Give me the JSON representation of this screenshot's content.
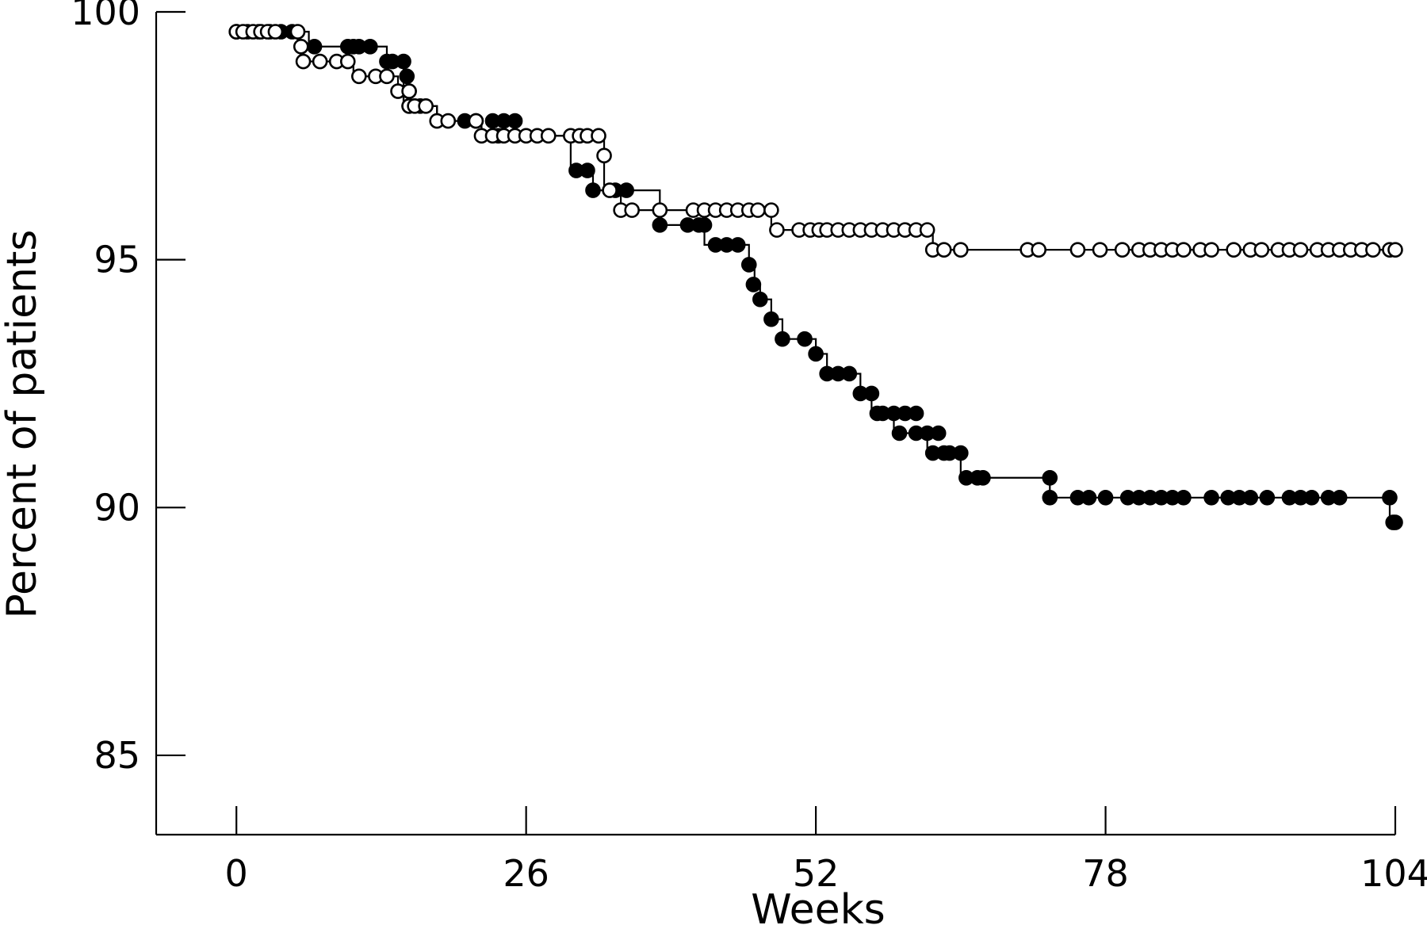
{
  "chart_data": {
    "type": "line",
    "title": "",
    "xlabel": "Weeks",
    "ylabel": "Percent of patients",
    "xlim": [
      -7.2,
      104
    ],
    "ylim": [
      83.4,
      100
    ],
    "xticks": [
      0,
      26,
      52,
      78,
      104
    ],
    "yticks": [
      85,
      90,
      95,
      100
    ],
    "grid": false,
    "legend": "none",
    "series": [
      {
        "marker": "filled-circle",
        "steps": [
          [
            0,
            99.6
          ],
          [
            5,
            99.6
          ],
          [
            6.5,
            99.3
          ],
          [
            10,
            99.3
          ],
          [
            13.5,
            99.0
          ],
          [
            15,
            98.7
          ],
          [
            15,
            98.1
          ],
          [
            17,
            98.1
          ],
          [
            18,
            97.8
          ],
          [
            21,
            97.8
          ],
          [
            22,
            97.5
          ],
          [
            30,
            97.5
          ],
          [
            30,
            96.8
          ],
          [
            32,
            96.4
          ],
          [
            34,
            96.4
          ],
          [
            38,
            95.7
          ],
          [
            42,
            95.3
          ],
          [
            46,
            94.9
          ],
          [
            46.5,
            94.5
          ],
          [
            47,
            94.2
          ],
          [
            48,
            93.8
          ],
          [
            49,
            93.4
          ],
          [
            52,
            93.1
          ],
          [
            53,
            92.7
          ],
          [
            56,
            92.3
          ],
          [
            57,
            91.9
          ],
          [
            59,
            91.5
          ],
          [
            62,
            91.1
          ],
          [
            65,
            90.6
          ],
          [
            73,
            90.2
          ],
          [
            103.5,
            90.2
          ],
          [
            103.5,
            89.7
          ],
          [
            104,
            89.7
          ]
        ],
        "points": [
          [
            0,
            99.6
          ],
          [
            1,
            99.6
          ],
          [
            2,
            99.6
          ],
          [
            3,
            99.6
          ],
          [
            4,
            99.6
          ],
          [
            5,
            99.6
          ],
          [
            7,
            99.3
          ],
          [
            10,
            99.3
          ],
          [
            10.5,
            99.3
          ],
          [
            11,
            99.3
          ],
          [
            12,
            99.3
          ],
          [
            13.5,
            99.0
          ],
          [
            14,
            99.0
          ],
          [
            15,
            99.0
          ],
          [
            15.3,
            98.7
          ],
          [
            15.5,
            98.4
          ],
          [
            15.5,
            98.1
          ],
          [
            16.5,
            98.1
          ],
          [
            20.5,
            97.8
          ],
          [
            21.5,
            97.8
          ],
          [
            23,
            97.8
          ],
          [
            23.5,
            97.5
          ],
          [
            24,
            97.8
          ],
          [
            25,
            97.8
          ],
          [
            30.5,
            96.8
          ],
          [
            31.5,
            96.8
          ],
          [
            32,
            96.4
          ],
          [
            34,
            96.4
          ],
          [
            35,
            96.4
          ],
          [
            38,
            95.7
          ],
          [
            40.5,
            95.7
          ],
          [
            41.5,
            95.7
          ],
          [
            42,
            95.7
          ],
          [
            43,
            95.3
          ],
          [
            44,
            95.3
          ],
          [
            45,
            95.3
          ],
          [
            46,
            94.9
          ],
          [
            46.4,
            94.5
          ],
          [
            47,
            94.2
          ],
          [
            48,
            93.8
          ],
          [
            49,
            93.4
          ],
          [
            51,
            93.4
          ],
          [
            52,
            93.1
          ],
          [
            53,
            92.7
          ],
          [
            54,
            92.7
          ],
          [
            55,
            92.7
          ],
          [
            56,
            92.3
          ],
          [
            57,
            92.3
          ],
          [
            57.5,
            91.9
          ],
          [
            58,
            91.9
          ],
          [
            59,
            91.9
          ],
          [
            60,
            91.9
          ],
          [
            61,
            91.9
          ],
          [
            59.5,
            91.5
          ],
          [
            61,
            91.5
          ],
          [
            62,
            91.5
          ],
          [
            63,
            91.5
          ],
          [
            62.5,
            91.1
          ],
          [
            63.5,
            91.1
          ],
          [
            64,
            91.1
          ],
          [
            65,
            91.1
          ],
          [
            65.5,
            90.6
          ],
          [
            66.5,
            90.6
          ],
          [
            67,
            90.6
          ],
          [
            73,
            90.6
          ],
          [
            73,
            90.2
          ],
          [
            75.5,
            90.2
          ],
          [
            76.5,
            90.2
          ],
          [
            78,
            90.2
          ],
          [
            80,
            90.2
          ],
          [
            81,
            90.2
          ],
          [
            82,
            90.2
          ],
          [
            83,
            90.2
          ],
          [
            84,
            90.2
          ],
          [
            85,
            90.2
          ],
          [
            87.5,
            90.2
          ],
          [
            89,
            90.2
          ],
          [
            90,
            90.2
          ],
          [
            91,
            90.2
          ],
          [
            92.5,
            90.2
          ],
          [
            94.5,
            90.2
          ],
          [
            95.5,
            90.2
          ],
          [
            96.5,
            90.2
          ],
          [
            98,
            90.2
          ],
          [
            99,
            90.2
          ],
          [
            103.5,
            90.2
          ],
          [
            104,
            89.7
          ],
          [
            103.8,
            89.7
          ]
        ]
      },
      {
        "marker": "open-circle",
        "steps": [
          [
            0,
            99.6
          ],
          [
            5.5,
            99.6
          ],
          [
            5.5,
            99.3
          ],
          [
            6,
            99.0
          ],
          [
            10,
            99.0
          ],
          [
            10.5,
            98.7
          ],
          [
            14,
            98.7
          ],
          [
            14.5,
            98.4
          ],
          [
            15,
            98.1
          ],
          [
            18,
            98.1
          ],
          [
            18,
            97.8
          ],
          [
            21.5,
            97.8
          ],
          [
            22,
            97.5
          ],
          [
            30,
            97.5
          ],
          [
            33,
            97.5
          ],
          [
            33,
            97.1
          ],
          [
            33,
            96.4
          ],
          [
            34,
            96.4
          ],
          [
            34.5,
            96.0
          ],
          [
            38,
            96.0
          ],
          [
            38,
            96.0
          ],
          [
            48,
            96.0
          ],
          [
            48,
            95.6
          ],
          [
            62,
            95.6
          ],
          [
            62.5,
            95.2
          ],
          [
            104,
            95.2
          ]
        ],
        "points": [
          [
            0,
            99.6
          ],
          [
            0.6,
            99.6
          ],
          [
            1.5,
            99.6
          ],
          [
            2.2,
            99.6
          ],
          [
            2.8,
            99.6
          ],
          [
            3.5,
            99.6
          ],
          [
            5.5,
            99.6
          ],
          [
            5.8,
            99.3
          ],
          [
            6,
            99.0
          ],
          [
            7.5,
            99.0
          ],
          [
            9,
            99.0
          ],
          [
            10,
            99.0
          ],
          [
            11,
            98.7
          ],
          [
            12.5,
            98.7
          ],
          [
            13.5,
            98.7
          ],
          [
            14.5,
            98.4
          ],
          [
            15.5,
            98.4
          ],
          [
            15.5,
            98.1
          ],
          [
            16,
            98.1
          ],
          [
            17,
            98.1
          ],
          [
            18,
            97.8
          ],
          [
            19,
            97.8
          ],
          [
            21.5,
            97.8
          ],
          [
            22,
            97.5
          ],
          [
            23,
            97.5
          ],
          [
            24,
            97.5
          ],
          [
            25,
            97.5
          ],
          [
            26,
            97.5
          ],
          [
            27,
            97.5
          ],
          [
            28,
            97.5
          ],
          [
            30,
            97.5
          ],
          [
            30.8,
            97.5
          ],
          [
            31.5,
            97.5
          ],
          [
            32.5,
            97.5
          ],
          [
            33,
            97.1
          ],
          [
            33.5,
            96.4
          ],
          [
            34.5,
            96.0
          ],
          [
            35.5,
            96.0
          ],
          [
            38,
            96.0
          ],
          [
            41,
            96.0
          ],
          [
            42,
            96.0
          ],
          [
            43,
            96.0
          ],
          [
            44,
            96.0
          ],
          [
            45,
            96.0
          ],
          [
            46,
            96.0
          ],
          [
            46.8,
            96.0
          ],
          [
            48,
            96.0
          ],
          [
            48.5,
            95.6
          ],
          [
            50.5,
            95.6
          ],
          [
            51.5,
            95.6
          ],
          [
            52.3,
            95.6
          ],
          [
            53,
            95.6
          ],
          [
            54,
            95.6
          ],
          [
            55,
            95.6
          ],
          [
            56,
            95.6
          ],
          [
            57,
            95.6
          ],
          [
            58,
            95.6
          ],
          [
            59,
            95.6
          ],
          [
            60,
            95.6
          ],
          [
            61,
            95.6
          ],
          [
            62,
            95.6
          ],
          [
            62.5,
            95.2
          ],
          [
            63.5,
            95.2
          ],
          [
            65,
            95.2
          ],
          [
            71,
            95.2
          ],
          [
            72,
            95.2
          ],
          [
            75.5,
            95.2
          ],
          [
            77.5,
            95.2
          ],
          [
            79.5,
            95.2
          ],
          [
            81,
            95.2
          ],
          [
            82,
            95.2
          ],
          [
            83,
            95.2
          ],
          [
            84,
            95.2
          ],
          [
            85,
            95.2
          ],
          [
            86.5,
            95.2
          ],
          [
            87.5,
            95.2
          ],
          [
            89.5,
            95.2
          ],
          [
            91,
            95.2
          ],
          [
            92,
            95.2
          ],
          [
            93.5,
            95.2
          ],
          [
            94.5,
            95.2
          ],
          [
            95.5,
            95.2
          ],
          [
            97,
            95.2
          ],
          [
            98,
            95.2
          ],
          [
            99,
            95.2
          ],
          [
            100,
            95.2
          ],
          [
            101,
            95.2
          ],
          [
            102,
            95.2
          ],
          [
            103.5,
            95.2
          ],
          [
            104,
            95.2
          ]
        ]
      }
    ],
    "colors": {
      "axis": "#000000",
      "filled_marker": "#000000",
      "open_marker_fill": "#ffffff"
    }
  }
}
